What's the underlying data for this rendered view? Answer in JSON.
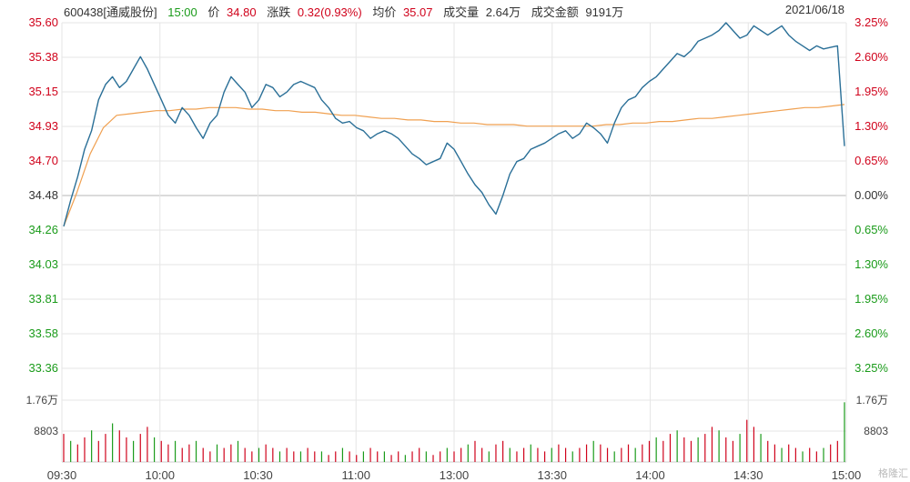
{
  "header": {
    "code_name": "600438[通威股份]",
    "time": "15:00",
    "price_label": "价",
    "price": "34.80",
    "change_label": "涨跌",
    "change": "0.32(0.93%)",
    "avg_label": "均价",
    "avg": "35.07",
    "volume_label": "成交量",
    "volume": "2.64万",
    "amount_label": "成交金额",
    "amount": "9191万",
    "date": "2021/06/18"
  },
  "watermark": "格隆汇",
  "colors": {
    "price_line": "#2a6f97",
    "avg_line": "#f0a050",
    "up": "#d0021b",
    "down": "#1a9b1a",
    "grid": "#e6e6e6"
  },
  "chart_data": {
    "type": "line",
    "prev_close": 34.48,
    "ylim": [
      33.36,
      35.6
    ],
    "left_ticks": [
      "35.60",
      "35.38",
      "35.15",
      "34.93",
      "34.70",
      "34.48",
      "34.26",
      "34.03",
      "33.81",
      "33.58",
      "33.36"
    ],
    "right_ticks": [
      "3.25%",
      "2.60%",
      "1.95%",
      "1.30%",
      "0.65%",
      "0.00%",
      "0.65%",
      "1.30%",
      "1.95%",
      "2.60%",
      "3.25%"
    ],
    "x_ticks": [
      "09:30",
      "10:00",
      "10:30",
      "11:00",
      "13:00",
      "13:30",
      "14:00",
      "14:30",
      "15:00"
    ],
    "volume_ticks": [
      "1.76万",
      "8803"
    ],
    "volume_max": 17600,
    "series": [
      {
        "name": "价",
        "values": [
          34.28,
          34.45,
          34.6,
          34.78,
          34.9,
          35.1,
          35.2,
          35.25,
          35.18,
          35.22,
          35.3,
          35.38,
          35.3,
          35.2,
          35.1,
          35.0,
          34.95,
          35.05,
          35.0,
          34.92,
          34.85,
          34.95,
          35.0,
          35.15,
          35.25,
          35.2,
          35.15,
          35.05,
          35.1,
          35.2,
          35.18,
          35.12,
          35.15,
          35.2,
          35.22,
          35.2,
          35.18,
          35.1,
          35.05,
          34.98,
          34.95,
          34.96,
          34.92,
          34.9,
          34.85,
          34.88,
          34.9,
          34.88,
          34.85,
          34.8,
          34.75,
          34.72,
          34.68,
          34.7,
          34.72,
          34.82,
          34.78,
          34.7,
          34.62,
          34.55,
          34.5,
          34.42,
          34.36,
          34.48,
          34.62,
          34.7,
          34.72,
          34.78,
          34.8,
          34.82,
          34.85,
          34.88,
          34.9,
          34.85,
          34.88,
          34.95,
          34.92,
          34.88,
          34.82,
          34.95,
          35.05,
          35.1,
          35.12,
          35.18,
          35.22,
          35.25,
          35.3,
          35.35,
          35.4,
          35.38,
          35.42,
          35.48,
          35.5,
          35.52,
          35.55,
          35.6,
          35.55,
          35.5,
          35.52,
          35.58,
          35.55,
          35.52,
          35.55,
          35.58,
          35.52,
          35.48,
          35.45,
          35.42,
          35.45,
          35.43,
          35.44,
          35.45,
          34.8
        ]
      },
      {
        "name": "均价",
        "values": [
          34.28,
          34.5,
          34.75,
          34.92,
          35.0,
          35.01,
          35.02,
          35.03,
          35.03,
          35.04,
          35.04,
          35.05,
          35.05,
          35.05,
          35.04,
          35.04,
          35.03,
          35.03,
          35.02,
          35.02,
          35.01,
          35.0,
          35.0,
          34.99,
          34.98,
          34.98,
          34.97,
          34.97,
          34.96,
          34.96,
          34.95,
          34.95,
          34.94,
          34.94,
          34.94,
          34.93,
          34.93,
          34.93,
          34.93,
          34.93,
          34.93,
          34.94,
          34.94,
          34.95,
          34.95,
          34.96,
          34.96,
          34.97,
          34.98,
          34.98,
          34.99,
          35.0,
          35.01,
          35.02,
          35.03,
          35.04,
          35.05,
          35.05,
          35.06,
          35.07
        ]
      },
      {
        "name": "成交量",
        "values": [
          8000,
          6000,
          5000,
          7000,
          9000,
          6000,
          8000,
          11000,
          9000,
          7000,
          6000,
          8000,
          10000,
          7000,
          6000,
          5000,
          6000,
          4000,
          5000,
          6000,
          4000,
          3000,
          5000,
          4000,
          5000,
          6000,
          4000,
          3000,
          4000,
          5000,
          4000,
          3000,
          4000,
          3000,
          3000,
          4000,
          3000,
          3000,
          2000,
          3000,
          4000,
          3000,
          2000,
          3000,
          4000,
          3000,
          3000,
          2000,
          3000,
          2000,
          3000,
          4000,
          3000,
          2000,
          3000,
          4000,
          3000,
          4000,
          5000,
          6000,
          4000,
          3000,
          5000,
          6000,
          4000,
          3000,
          4000,
          5000,
          4000,
          3000,
          4000,
          5000,
          4000,
          3000,
          4000,
          5000,
          6000,
          5000,
          4000,
          3000,
          4000,
          5000,
          4000,
          5000,
          6000,
          7000,
          6000,
          8000,
          9000,
          7000,
          6000,
          7000,
          8000,
          10000,
          9000,
          7000,
          6000,
          8000,
          12000,
          10000,
          8000,
          6000,
          5000,
          4000,
          5000,
          4000,
          3000,
          4000,
          3000,
          4000,
          5000,
          6000,
          17000
        ]
      }
    ]
  }
}
